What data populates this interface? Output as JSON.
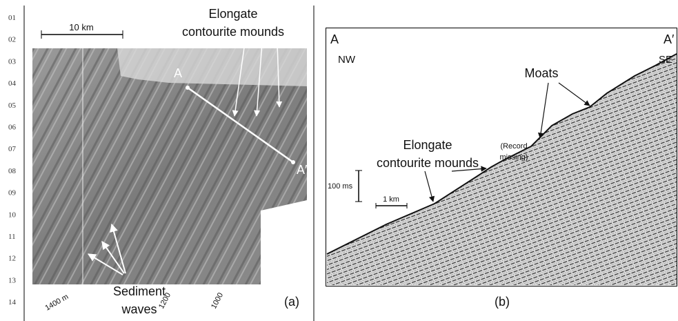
{
  "line_numbers": [
    "01",
    "02",
    "03",
    "04",
    "05",
    "06",
    "07",
    "08",
    "09",
    "10",
    "11",
    "12",
    "13",
    "14"
  ],
  "panel_a": {
    "scale_bar": "10 km",
    "label_mounds": [
      "Elongate",
      "contourite mounds"
    ],
    "point_a": "A",
    "point_a_prime": "A′",
    "contours": [
      "1400 m",
      "1200",
      "1000"
    ],
    "label_waves": [
      "Sediment",
      "waves"
    ],
    "caption": "(a)"
  },
  "panel_b": {
    "point_a": "A",
    "point_a_prime": "A′",
    "dir_left": "NW",
    "dir_right": "SE",
    "label_moats": "Moats",
    "label_mounds": [
      "Elongate",
      "contourite mounds"
    ],
    "label_record": [
      "(Record",
      "missing)"
    ],
    "vertical_scale": "100 ms",
    "horizontal_scale": "1 km",
    "caption": "(b)"
  }
}
